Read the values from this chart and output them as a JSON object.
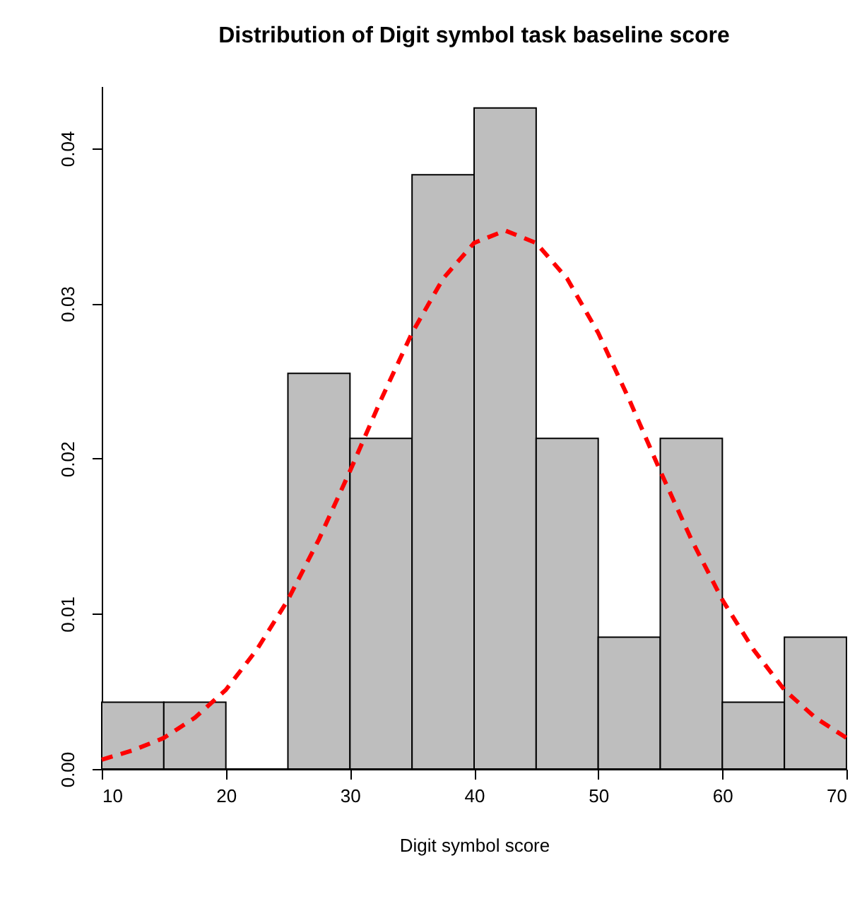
{
  "chart_data": {
    "type": "histogram",
    "title": "Distribution of Digit symbol task baseline score",
    "xlabel": "Digit symbol score",
    "bins": [
      10,
      15,
      20,
      25,
      30,
      35,
      40,
      45,
      50,
      55,
      60,
      65,
      70
    ],
    "series": [
      {
        "color": "#bebebe",
        "values": [
          0.0043,
          0.0043,
          0,
          0.0255,
          0.0213,
          0.0383,
          0.0426,
          0.0213,
          0.0085,
          0.0213,
          0.0043,
          0.0085
        ]
      },
      {
        "type": "line",
        "color": "#ff0000",
        "line_style": "dashed",
        "x": [
          10,
          12.5,
          15,
          17.5,
          20,
          22.5,
          25,
          27.5,
          30,
          32.5,
          35,
          37.5,
          40,
          42.5,
          45,
          47.5,
          50,
          52.5,
          55,
          57.5,
          60,
          62.5,
          65,
          67.5,
          70
        ],
        "values": [
          0.0006,
          0.0012,
          0.002,
          0.0033,
          0.0051,
          0.0077,
          0.0109,
          0.0148,
          0.0192,
          0.0238,
          0.0281,
          0.0316,
          0.0339,
          0.0347,
          0.0339,
          0.0316,
          0.0281,
          0.0238,
          0.0192,
          0.0148,
          0.0109,
          0.0077,
          0.0051,
          0.0033,
          0.002
        ]
      }
    ],
    "xlim": [
      10,
      70
    ],
    "ylim": [
      0,
      0.044
    ],
    "xticks": [
      10,
      20,
      30,
      40,
      50,
      60,
      70
    ],
    "yticks": [
      {
        "value": 0,
        "label": "0.00"
      },
      {
        "value": 0.01,
        "label": "0.01"
      },
      {
        "value": 0.02,
        "label": "0.02"
      },
      {
        "value": 0.03,
        "label": "0.03"
      },
      {
        "value": 0.04,
        "label": "0.04"
      }
    ],
    "grid": false
  }
}
